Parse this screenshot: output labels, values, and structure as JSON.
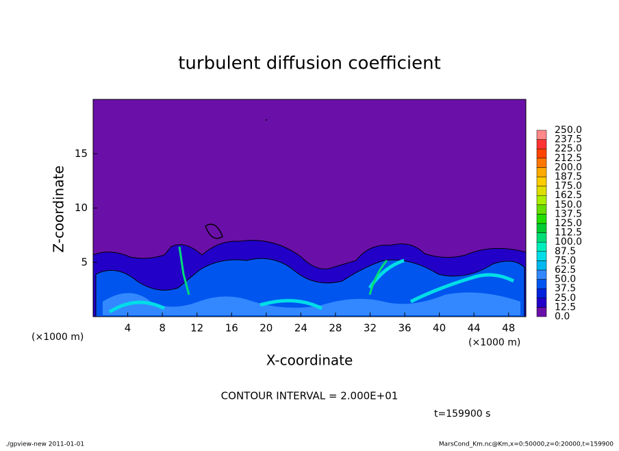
{
  "chart_data": {
    "type": "contour",
    "title": "turbulent diffusion coefficient",
    "xlabel": "X-coordinate",
    "ylabel": "Z-coordinate",
    "x_unit_label": "(×1000 m)",
    "xlim": [
      0,
      50
    ],
    "xticks": [
      4,
      8,
      12,
      16,
      20,
      24,
      28,
      32,
      36,
      40,
      44,
      48
    ],
    "ylim": [
      0,
      20
    ],
    "yticks": [
      5,
      10,
      15
    ],
    "contour_note": "CONTOUR INTERVAL = 2.000E+01",
    "time_label": "t=159900 s",
    "footer_left": "./gpview-new   2011-01-01",
    "footer_right": "MarsCond_Km.nc@Km,x=0:50000,z=0:20000,t=159900",
    "colorbar": {
      "levels": [
        {
          "value": 0,
          "label": "0.0"
        },
        {
          "value": 12.5,
          "label": "12.5"
        },
        {
          "value": 25,
          "label": "25.0"
        },
        {
          "value": 37.5,
          "label": "37.5"
        },
        {
          "value": 50,
          "label": "50.0"
        },
        {
          "value": 62.5,
          "label": "62.5"
        },
        {
          "value": 75,
          "label": "75.0"
        },
        {
          "value": 87.5,
          "label": "87.5"
        },
        {
          "value": 100,
          "label": "100.0"
        },
        {
          "value": 112.5,
          "label": "112.5"
        },
        {
          "value": 125,
          "label": "125.0"
        },
        {
          "value": 137.5,
          "label": "137.5"
        },
        {
          "value": 150,
          "label": "150.0"
        },
        {
          "value": 162.5,
          "label": "162.5"
        },
        {
          "value": 175,
          "label": "175.0"
        },
        {
          "value": 187.5,
          "label": "187.5"
        },
        {
          "value": 200,
          "label": "200.0"
        },
        {
          "value": 212.5,
          "label": "212.5"
        },
        {
          "value": 225,
          "label": "225.0"
        },
        {
          "value": 237.5,
          "label": "237.5"
        },
        {
          "value": 250,
          "label": "250.0"
        }
      ],
      "colors": [
        "#6a10a8",
        "#2200c8",
        "#0022dd",
        "#0055ee",
        "#3388ff",
        "#00b8f0",
        "#00dde8",
        "#00eebb",
        "#00dd77",
        "#00cc33",
        "#22dd00",
        "#66dd00",
        "#aaee00",
        "#dddd00",
        "#ffcc00",
        "#ffaa00",
        "#ff7700",
        "#ff4400",
        "#ff3333",
        "#ff8888"
      ]
    }
  }
}
